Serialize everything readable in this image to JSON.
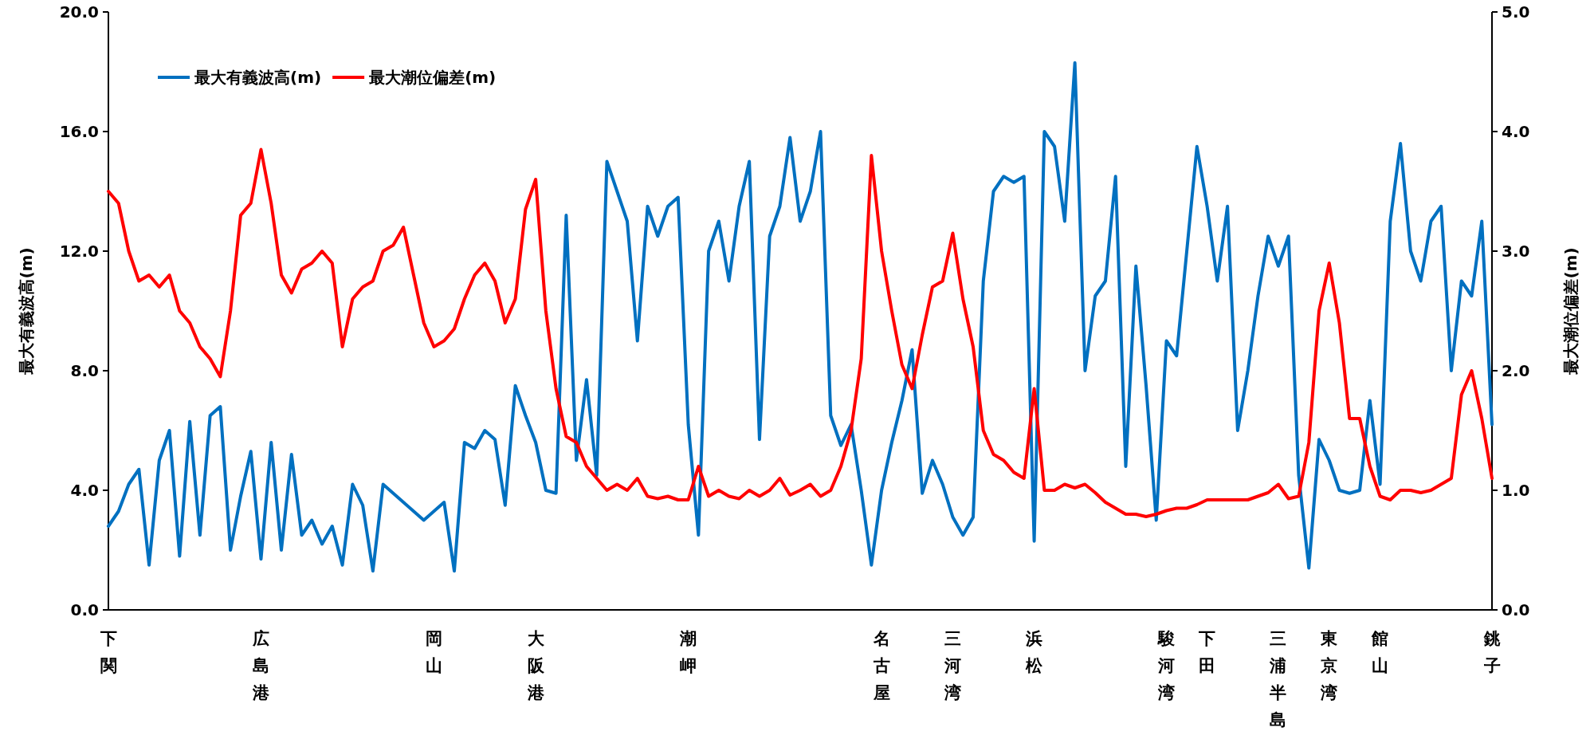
{
  "chart_data": {
    "type": "line",
    "categories": [
      "下関",
      null,
      null,
      null,
      null,
      null,
      null,
      null,
      null,
      null,
      null,
      null,
      null,
      null,
      null,
      "広島港",
      null,
      null,
      null,
      null,
      null,
      null,
      null,
      null,
      null,
      null,
      null,
      null,
      null,
      null,
      null,
      null,
      "岡山",
      null,
      null,
      null,
      null,
      null,
      null,
      null,
      null,
      null,
      "大阪港",
      null,
      null,
      null,
      null,
      null,
      null,
      null,
      null,
      null,
      null,
      null,
      null,
      null,
      null,
      "潮岬",
      null,
      null,
      null,
      null,
      null,
      null,
      null,
      null,
      null,
      null,
      null,
      null,
      null,
      null,
      null,
      null,
      null,
      null,
      "名古屋",
      null,
      null,
      null,
      null,
      null,
      null,
      "三河湾",
      null,
      null,
      null,
      null,
      null,
      null,
      null,
      "浜松",
      null,
      null,
      null,
      null,
      null,
      null,
      null,
      null,
      null,
      null,
      null,
      null,
      "駿河湾",
      null,
      null,
      null,
      "下田",
      null,
      null,
      null,
      null,
      null,
      null,
      "三浦半島",
      null,
      null,
      null,
      null,
      "東京湾",
      null,
      null,
      null,
      null,
      "館山",
      null,
      null,
      null,
      null,
      null,
      null,
      null,
      null,
      null,
      null,
      "銚子"
    ],
    "series": [
      {
        "name": "最大有義波高(m)",
        "color": "#0070c0",
        "values": [
          2.8,
          3.3,
          4.2,
          4.7,
          1.5,
          5.0,
          6.0,
          1.8,
          6.3,
          2.5,
          6.5,
          6.8,
          2.0,
          3.8,
          5.3,
          1.7,
          5.6,
          2.0,
          5.2,
          2.5,
          3.0,
          2.2,
          2.8,
          1.5,
          4.2,
          3.5,
          1.3,
          4.2,
          3.9,
          3.6,
          3.3,
          3.0,
          3.3,
          3.6,
          1.3,
          5.6,
          5.4,
          6.0,
          5.7,
          3.5,
          7.5,
          6.5,
          5.6,
          4.0,
          3.9,
          13.2,
          5.0,
          7.7,
          4.5,
          15.0,
          14.0,
          13.0,
          9.0,
          13.5,
          12.5,
          13.5,
          13.8,
          6.2,
          2.5,
          12.0,
          13.0,
          11.0,
          13.5,
          15.0,
          5.7,
          12.5,
          13.5,
          15.8,
          13.0,
          14.0,
          16.0,
          6.5,
          5.5,
          6.2,
          4.0,
          1.5,
          4.0,
          5.6,
          7.0,
          8.7,
          3.9,
          5.0,
          4.2,
          3.1,
          2.5,
          3.1,
          11.0,
          14.0,
          14.5,
          14.3,
          14.5,
          2.3,
          16.0,
          15.5,
          13.0,
          18.3,
          8.0,
          10.5,
          11.0,
          14.5,
          4.8,
          11.5,
          7.5,
          3.0,
          9.0,
          8.5,
          12.0,
          15.5,
          13.5,
          11.0,
          13.5,
          6.0,
          8.0,
          10.5,
          12.5,
          11.5,
          12.5,
          4.5,
          1.4,
          5.7,
          5.0,
          4.0,
          3.9,
          4.0,
          7.0,
          4.2,
          13.0,
          15.6,
          12.0,
          11.0,
          13.0,
          13.5,
          8.0,
          11.0,
          10.5,
          13.0,
          6.2
        ]
      },
      {
        "name": "最大潮位偏差(m)",
        "color": "#ff0000",
        "axis": "y2",
        "values": [
          3.5,
          3.4,
          3.0,
          2.75,
          2.8,
          2.7,
          2.8,
          2.5,
          2.4,
          2.2,
          2.1,
          1.95,
          2.5,
          3.3,
          3.4,
          3.85,
          3.4,
          2.8,
          2.65,
          2.85,
          2.9,
          3.0,
          2.9,
          2.2,
          2.6,
          2.7,
          2.75,
          3.0,
          3.05,
          3.2,
          2.8,
          2.4,
          2.2,
          2.25,
          2.35,
          2.6,
          2.8,
          2.9,
          2.75,
          2.4,
          2.6,
          3.35,
          3.6,
          2.5,
          1.85,
          1.45,
          1.4,
          1.2,
          1.1,
          1.0,
          1.05,
          1.0,
          1.1,
          0.95,
          0.93,
          0.95,
          0.92,
          0.92,
          1.2,
          0.95,
          1.0,
          0.95,
          0.93,
          1.0,
          0.95,
          1.0,
          1.1,
          0.96,
          1.0,
          1.05,
          0.95,
          1.0,
          1.2,
          1.5,
          2.1,
          3.8,
          3.0,
          2.5,
          2.05,
          1.85,
          2.3,
          2.7,
          2.75,
          3.15,
          2.6,
          2.2,
          1.5,
          1.3,
          1.25,
          1.15,
          1.1,
          1.85,
          1.0,
          1.0,
          1.05,
          1.02,
          1.05,
          0.98,
          0.9,
          0.85,
          0.8,
          0.8,
          0.78,
          0.8,
          0.83,
          0.85,
          0.85,
          0.88,
          0.92,
          0.92,
          0.92,
          0.92,
          0.92,
          0.95,
          0.98,
          1.05,
          0.93,
          0.95,
          1.4,
          2.5,
          2.9,
          2.4,
          1.6,
          1.6,
          1.2,
          0.95,
          0.92,
          1.0,
          1.0,
          0.98,
          1.0,
          1.05,
          1.1,
          1.8,
          2.0,
          1.6,
          1.1
        ]
      }
    ],
    "ylabel": "最大有義波高(m)",
    "y2label": "最大潮位偏差(m)",
    "ylim": [
      0,
      20
    ],
    "yticks": [
      {
        "value": 0,
        "label": "0.0"
      },
      {
        "value": 4,
        "label": "4.0"
      },
      {
        "value": 8,
        "label": "8.0"
      },
      {
        "value": 12,
        "label": "12.0"
      },
      {
        "value": 16,
        "label": "16.0"
      },
      {
        "value": 20,
        "label": "20.0"
      }
    ],
    "y2lim": [
      0,
      5
    ],
    "y2ticks": [
      {
        "value": 0,
        "label": "0.0"
      },
      {
        "value": 1,
        "label": "1.0"
      },
      {
        "value": 2,
        "label": "2.0"
      },
      {
        "value": 3,
        "label": "3.0"
      },
      {
        "value": 4,
        "label": "4.0"
      },
      {
        "value": 5,
        "label": "5.0"
      }
    ],
    "legend": "top left"
  }
}
